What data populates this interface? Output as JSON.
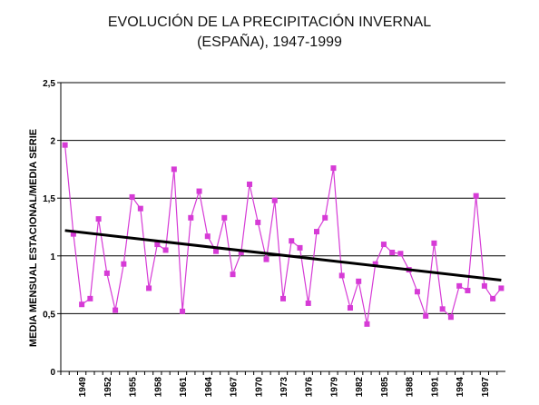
{
  "chart_data": {
    "type": "line",
    "title_line1": "EVOLUCIÓN DE LA PRECIPITACIÓN INVERNAL",
    "title_line2": "(ESPAÑA), 1947-1999",
    "ylabel": "MEDIA MENSUAL ESTACIONAL/MEDIA SERIE",
    "xlabel": "",
    "ylim": [
      0,
      2.5
    ],
    "yticks": [
      0,
      0.5,
      1,
      1.5,
      2,
      2.5
    ],
    "ytick_labels": [
      "0",
      "0,5",
      "1",
      "1,5",
      "2",
      "2,5"
    ],
    "xlim": [
      1946.5,
      1999.5
    ],
    "xtick_labels": [
      "1949",
      "1952",
      "1955",
      "1958",
      "1961",
      "1964",
      "1967",
      "1970",
      "1973",
      "1976",
      "1979",
      "1982",
      "1985",
      "1988",
      "1991",
      "1994",
      "1997"
    ],
    "grid": "horizontal",
    "series": [
      {
        "type": "line-markers",
        "color": "#d63bd6",
        "marker": "square",
        "x": [
          1947,
          1948,
          1949,
          1950,
          1951,
          1952,
          1953,
          1954,
          1955,
          1956,
          1957,
          1958,
          1959,
          1960,
          1961,
          1962,
          1963,
          1964,
          1965,
          1966,
          1967,
          1968,
          1969,
          1970,
          1971,
          1972,
          1973,
          1974,
          1975,
          1976,
          1977,
          1978,
          1979,
          1980,
          1981,
          1982,
          1983,
          1984,
          1985,
          1986,
          1987,
          1988,
          1989,
          1990,
          1991,
          1992,
          1993,
          1994,
          1995,
          1996,
          1997,
          1998,
          1999
        ],
        "values": [
          1.96,
          1.19,
          0.58,
          0.63,
          1.32,
          0.85,
          0.53,
          0.93,
          1.51,
          1.41,
          0.72,
          1.1,
          1.05,
          1.75,
          0.52,
          1.33,
          1.56,
          1.17,
          1.04,
          1.33,
          0.84,
          1.03,
          1.62,
          1.29,
          0.97,
          1.48,
          0.63,
          1.13,
          1.07,
          0.59,
          1.21,
          1.33,
          1.76,
          0.83,
          0.55,
          0.78,
          0.41,
          0.93,
          1.1,
          1.03,
          1.02,
          0.88,
          0.69,
          0.48,
          1.11,
          0.54,
          0.47,
          0.74,
          0.7,
          1.52,
          0.74,
          0.63,
          0.72
        ]
      },
      {
        "type": "trend",
        "color": "#000000",
        "x": [
          1947,
          1999
        ],
        "values": [
          1.22,
          0.79
        ]
      }
    ]
  }
}
